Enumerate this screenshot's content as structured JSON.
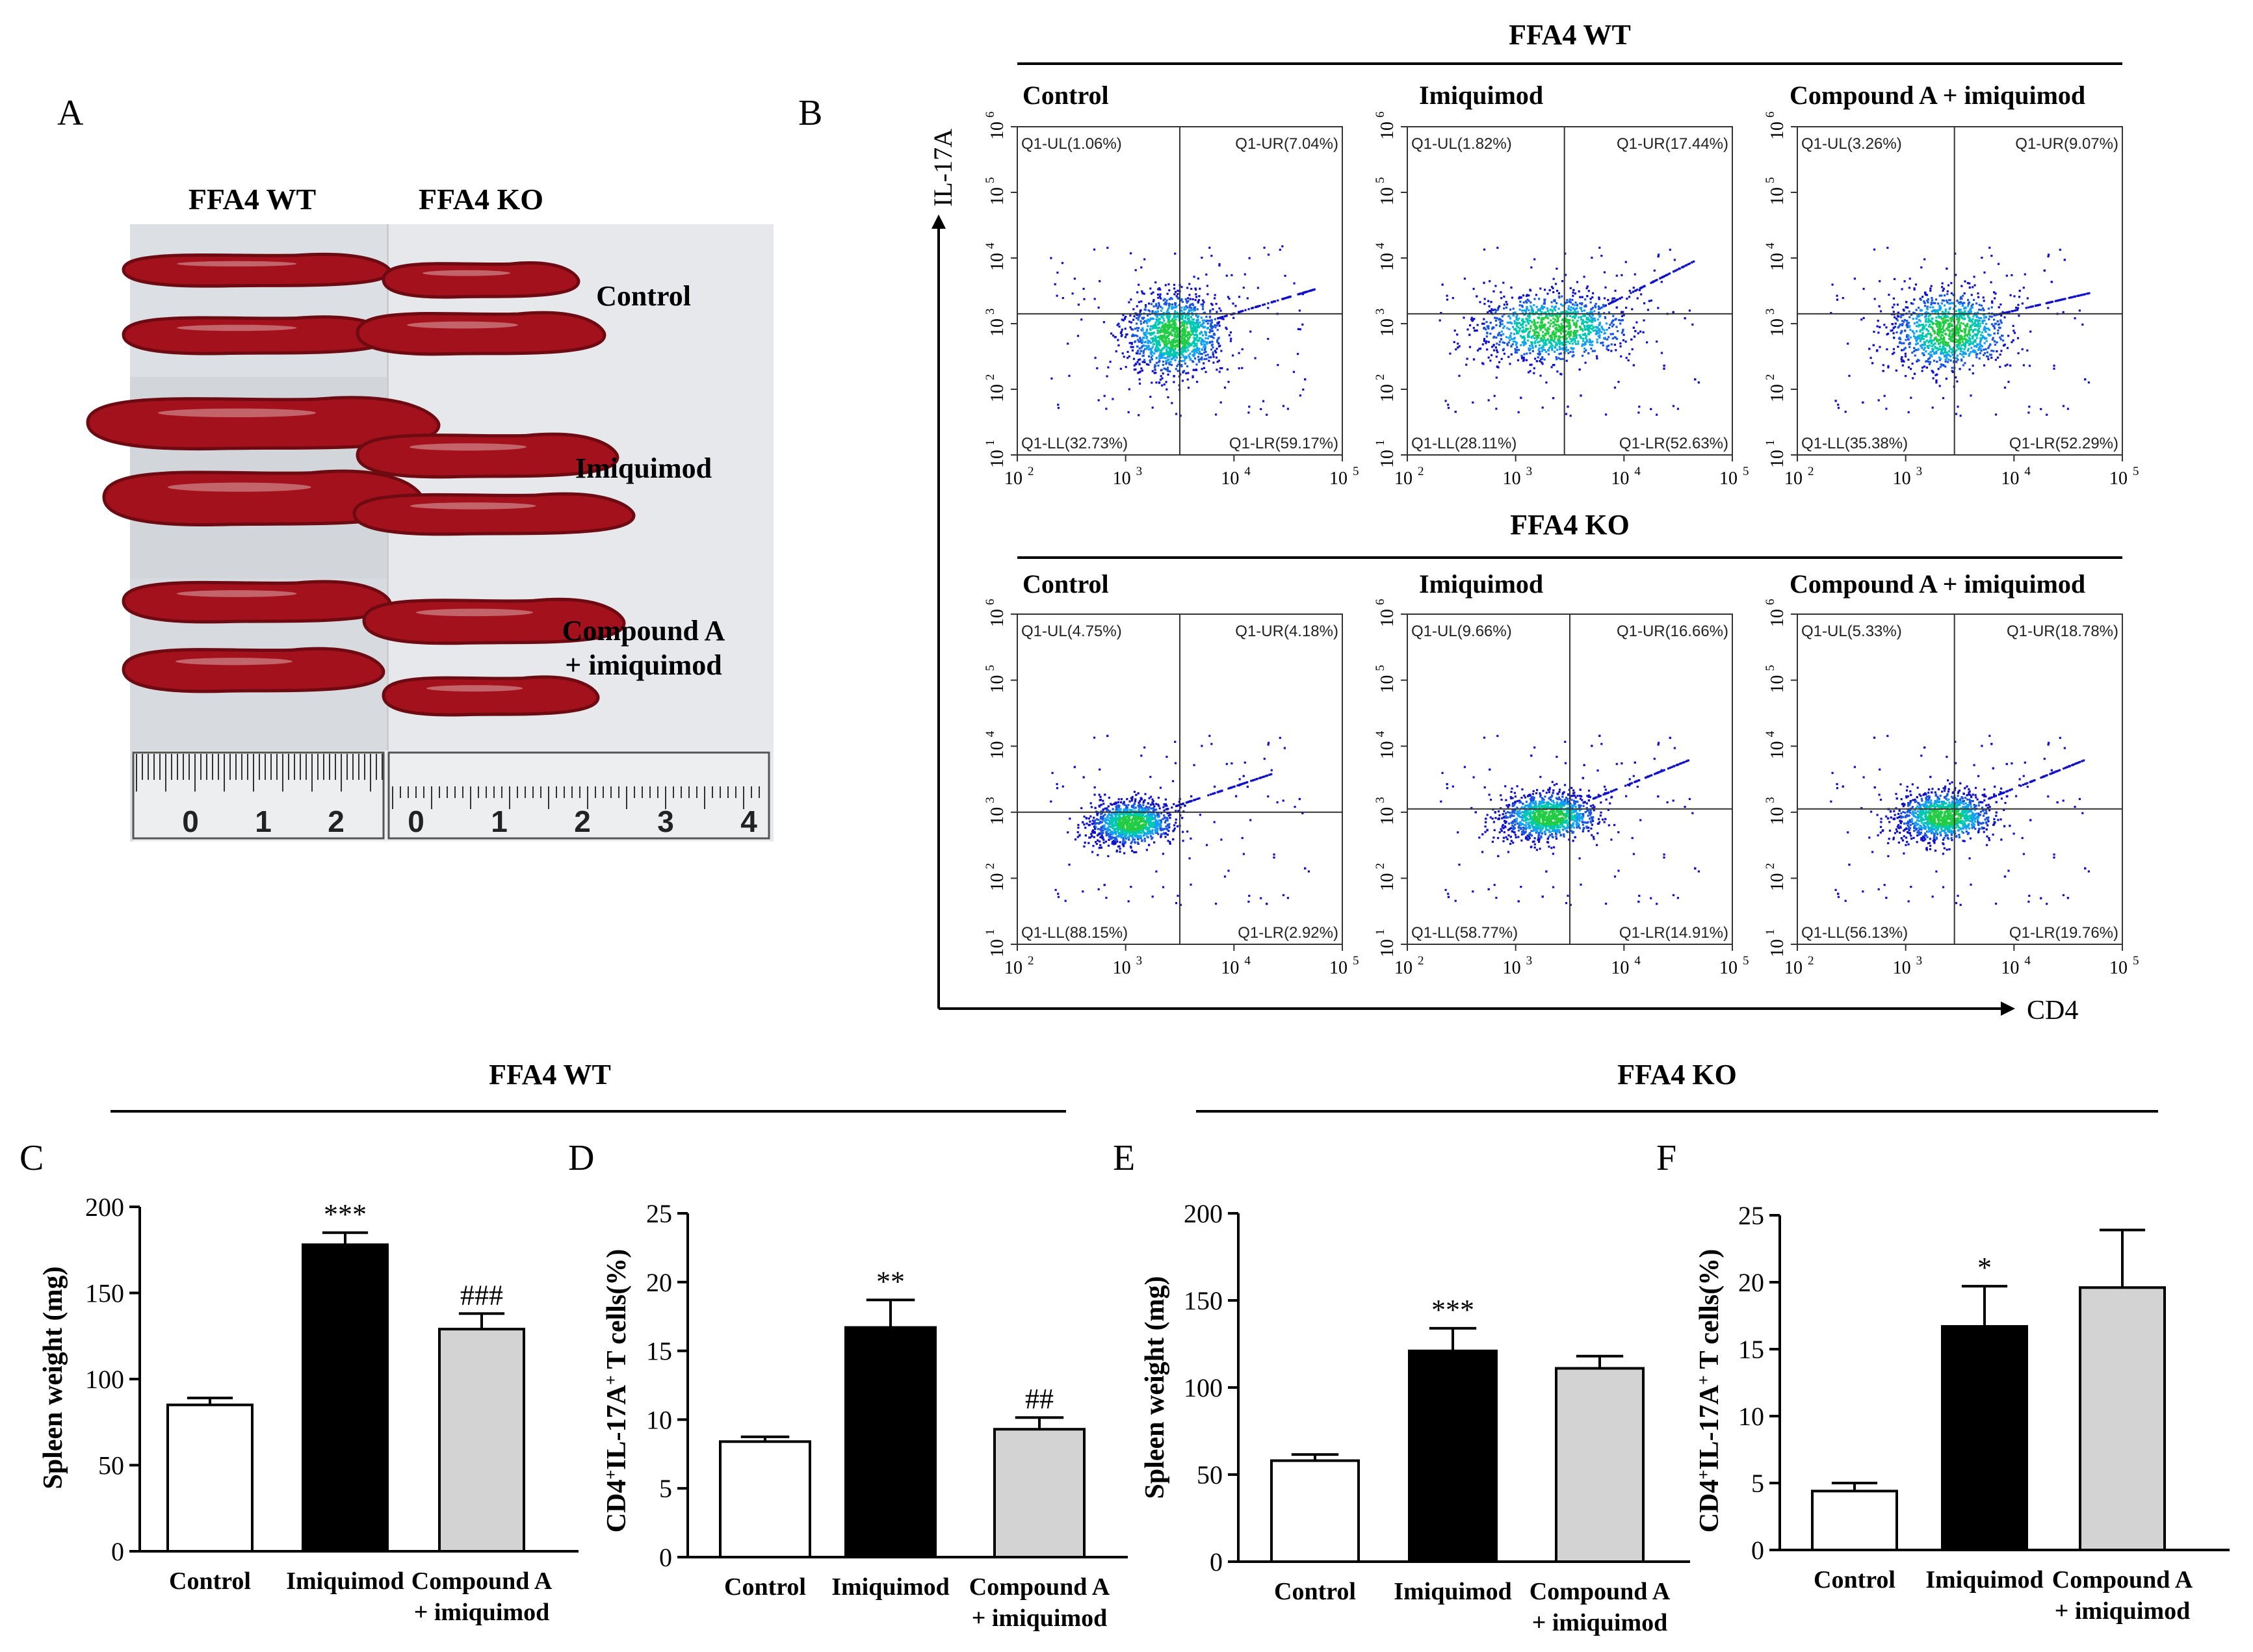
{
  "panel_letters": [
    "A",
    "B",
    "C",
    "D",
    "E",
    "F"
  ],
  "panel_a": {
    "columns": [
      "FFA4 WT",
      "FFA4 KO"
    ],
    "rows": [
      {
        "lines": [
          "Control"
        ]
      },
      {
        "lines": [
          "Imiquimod"
        ]
      },
      {
        "lines": [
          "Compound A",
          "+ imiquimod"
        ]
      }
    ],
    "ruler_left": [
      "0",
      "1",
      "2"
    ],
    "ruler_right": [
      "0",
      "1",
      "2",
      "3",
      "4"
    ],
    "colors": {
      "spleen": "#a3121c",
      "spleen_dark": "#6e0a12",
      "background": "#dfe2e6",
      "ruler": "#eceef0"
    }
  },
  "panel_b": {
    "x_axis_label": "CD4",
    "y_axis_label": "IL-17A",
    "x_ticks": [
      "10",
      "10",
      "10",
      "10"
    ],
    "x_tick_exponents": [
      "2",
      "3",
      "4",
      "5"
    ],
    "y_ticks": [
      "10",
      "10",
      "10",
      "10",
      "10",
      "10"
    ],
    "y_tick_exponents": [
      "1",
      "2",
      "3",
      "4",
      "5",
      "6"
    ],
    "groups": [
      {
        "header": "FFA4 WT",
        "plots": [
          {
            "title": "Control",
            "UL": "Q1-UL(1.06%)",
            "UR": "Q1-UR(7.04%)",
            "LL": "Q1-LL(32.73%)",
            "LR": "Q1-LR(59.17%)",
            "gate_x": 3.5,
            "gate_y": 3.15,
            "center": [
              3.45,
              2.85
            ],
            "spread": [
              0.2,
              0.28
            ],
            "diag": 0.45
          },
          {
            "title": "Imiquimod",
            "UL": "Q1-UL(1.82%)",
            "UR": "Q1-UR(17.44%)",
            "LL": "Q1-LL(28.11%)",
            "LR": "Q1-LR(52.63%)",
            "gate_x": 3.45,
            "gate_y": 3.15,
            "center": [
              3.35,
              2.95
            ],
            "spread": [
              0.32,
              0.24
            ],
            "diag": 0.75
          },
          {
            "title": "Compound A + imiquimod",
            "UL": "Q1-UL(3.26%)",
            "UR": "Q1-UR(9.07%)",
            "LL": "Q1-LL(35.38%)",
            "LR": "Q1-LR(52.29%)",
            "gate_x": 3.45,
            "gate_y": 3.15,
            "center": [
              3.4,
              2.9
            ],
            "spread": [
              0.25,
              0.28
            ],
            "diag": 0.35
          }
        ]
      },
      {
        "header": "FFA4 KO",
        "plots": [
          {
            "title": "Control",
            "UL": "Q1-UL(4.75%)",
            "UR": "Q1-UR(4.18%)",
            "LL": "Q1-LL(88.15%)",
            "LR": "Q1-LR(2.92%)",
            "gate_x": 3.5,
            "gate_y": 3.0,
            "center": [
              3.05,
              2.85
            ],
            "spread": [
              0.17,
              0.15
            ],
            "diag": 0.5
          },
          {
            "title": "Imiquimod",
            "UL": "Q1-UL(9.66%)",
            "UR": "Q1-UR(16.66%)",
            "LL": "Q1-LL(58.77%)",
            "LR": "Q1-LR(14.91%)",
            "gate_x": 3.5,
            "gate_y": 3.05,
            "center": [
              3.3,
              2.95
            ],
            "spread": [
              0.2,
              0.16
            ],
            "diag": 0.6
          },
          {
            "title": "Compound A + imiquimod",
            "UL": "Q1-UL(5.33%)",
            "UR": "Q1-UR(18.78%)",
            "LL": "Q1-LL(56.13%)",
            "LR": "Q1-LR(19.76%)",
            "gate_x": 3.45,
            "gate_y": 3.05,
            "center": [
              3.35,
              2.95
            ],
            "spread": [
              0.2,
              0.17
            ],
            "diag": 0.6
          }
        ]
      }
    ]
  },
  "section_headers": [
    "FFA4 WT",
    "FFA4 KO"
  ],
  "chart_data": [
    {
      "id": "C",
      "type": "bar",
      "categories": [
        "Control",
        "Imiquimod",
        "Compound A\n+ imiquimod"
      ],
      "values": [
        85,
        178,
        129
      ],
      "errors": [
        4,
        7,
        9
      ],
      "ylabel": "Spleen weight (mg)",
      "ylim": [
        0,
        200
      ],
      "yticks": [
        0,
        50,
        100,
        150,
        200
      ],
      "annotations": [
        "",
        "***",
        "###"
      ],
      "fills": [
        "#ffffff",
        "#000000",
        "#d3d3d3"
      ]
    },
    {
      "id": "D",
      "type": "bar",
      "categories": [
        "Control",
        "Imiquimod",
        "Compound A\n+ imiquimod"
      ],
      "values": [
        8.4,
        16.7,
        9.3
      ],
      "errors": [
        0.35,
        2.0,
        0.85
      ],
      "ylabel": "CD4+IL-17A+ T cells(%)",
      "ylim": [
        0,
        25
      ],
      "yticks": [
        0,
        5,
        10,
        15,
        20,
        25
      ],
      "annotations": [
        "",
        "**",
        "##"
      ],
      "fills": [
        "#ffffff",
        "#000000",
        "#d3d3d3"
      ]
    },
    {
      "id": "E",
      "type": "bar",
      "categories": [
        "Control",
        "Imiquimod",
        "Compound A\n+ imiquimod"
      ],
      "values": [
        58,
        121,
        111
      ],
      "errors": [
        3.5,
        13,
        7
      ],
      "ylabel": "Spleen weight (mg)",
      "ylim": [
        0,
        200
      ],
      "yticks": [
        0,
        50,
        100,
        150,
        200
      ],
      "annotations": [
        "",
        "***",
        ""
      ],
      "fills": [
        "#ffffff",
        "#000000",
        "#d3d3d3"
      ]
    },
    {
      "id": "F",
      "type": "bar",
      "categories": [
        "Control",
        "Imiquimod",
        "Compound A\n+ imiquimod"
      ],
      "values": [
        4.4,
        16.7,
        19.6
      ],
      "errors": [
        0.6,
        3.0,
        4.3
      ],
      "ylabel": "CD4+IL-17A+ T cells(%)",
      "ylim": [
        0,
        25
      ],
      "yticks": [
        0,
        5,
        10,
        15,
        20,
        25
      ],
      "annotations": [
        "",
        "*",
        ""
      ],
      "fills": [
        "#ffffff",
        "#000000",
        "#d3d3d3"
      ]
    }
  ]
}
